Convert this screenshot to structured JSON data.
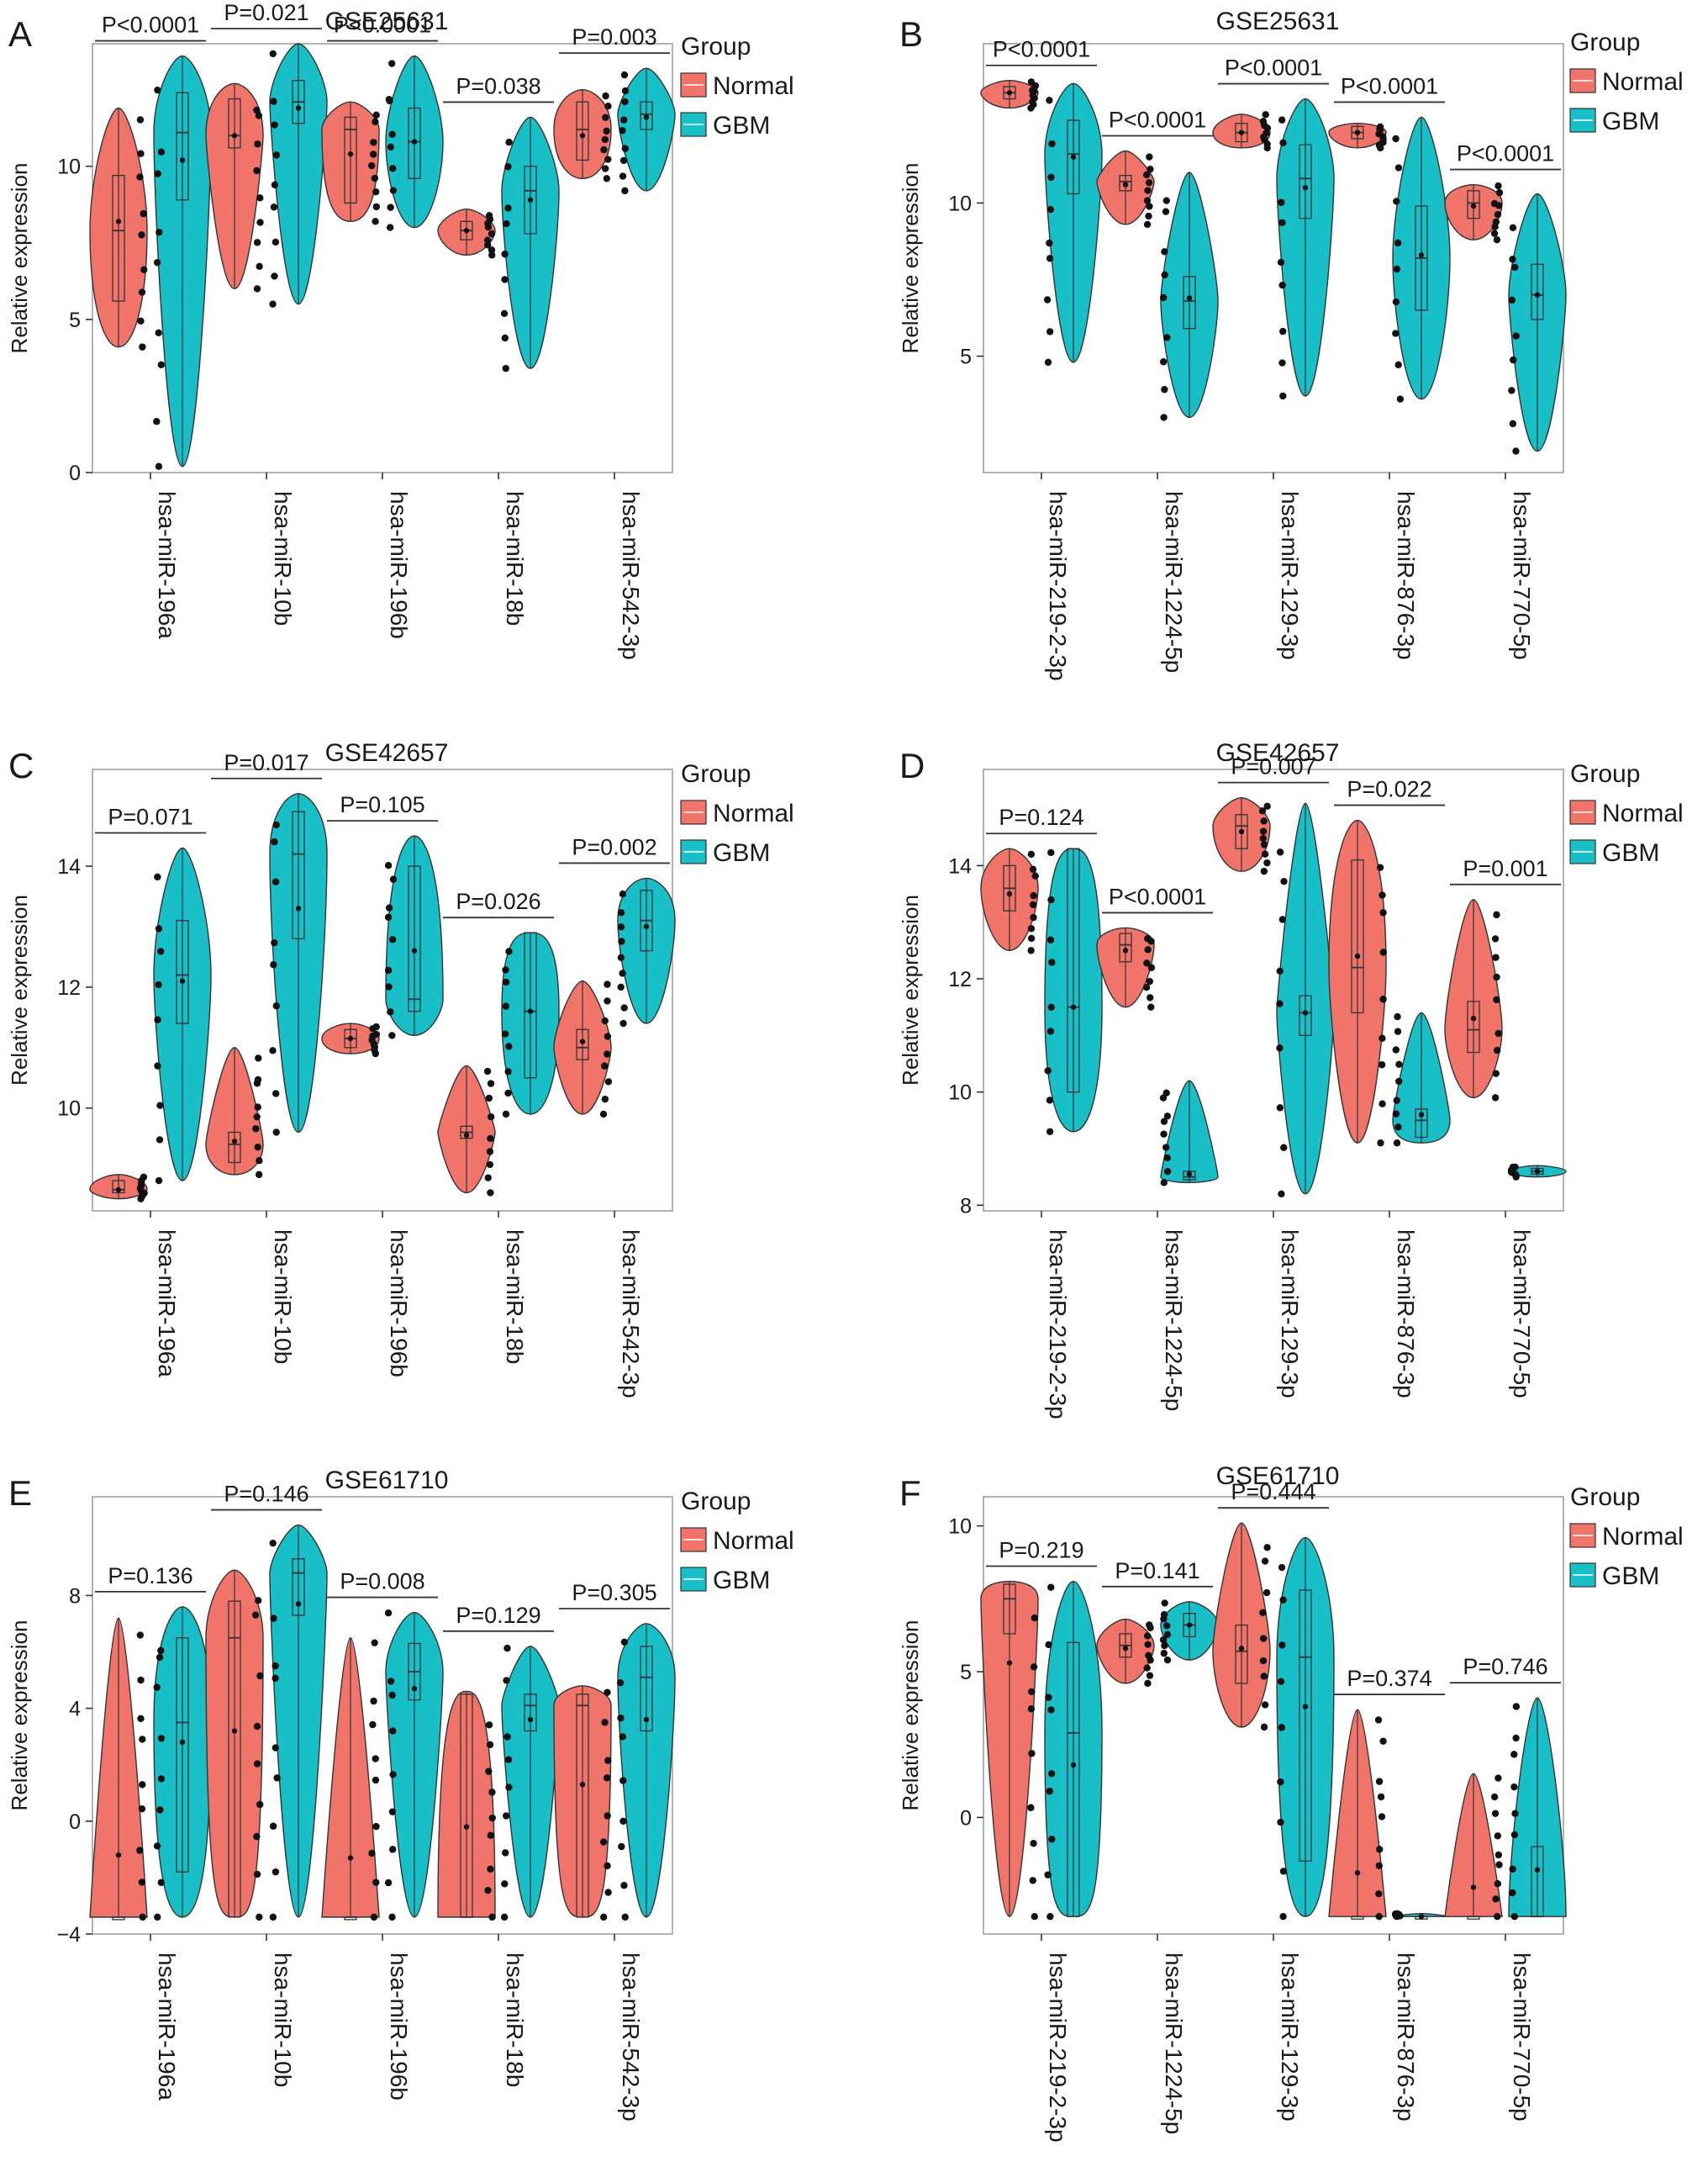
{
  "figure": {
    "legend_title": "Group",
    "group_names": [
      "Normal",
      "GBM"
    ],
    "colors": {
      "Normal": "#F0746A",
      "GBM": "#19BFC6",
      "outline": "#333333",
      "panel_border": "#a0a0a0"
    },
    "ylabel": "Relative expression"
  },
  "chart_data": [
    {
      "panel": "A",
      "type": "violin",
      "title": "GSE25631",
      "ylim": [
        0,
        14
      ],
      "yticks": [
        0,
        5,
        10
      ],
      "categories": [
        "hsa-miR-196a",
        "hsa-miR-10b",
        "hsa-miR-196b",
        "hsa-miR-18b",
        "hsa-miR-542-3p"
      ],
      "pvalues": [
        "P<0.0001",
        "P=0.021",
        "P<0.0001",
        "P=0.038",
        "P=0.003"
      ],
      "series": [
        {
          "name": "Normal",
          "violins": [
            {
              "min": 4.1,
              "max": 11.9,
              "q1": 5.6,
              "median": 7.9,
              "q3": 9.7,
              "mean": 8.2
            },
            {
              "min": 6.0,
              "max": 12.7,
              "q1": 10.6,
              "median": 11.0,
              "q3": 12.2,
              "mean": 11.0
            },
            {
              "min": 8.2,
              "max": 12.1,
              "q1": 8.8,
              "median": 11.2,
              "q3": 11.6,
              "mean": 10.4
            },
            {
              "min": 7.1,
              "max": 8.6,
              "q1": 7.6,
              "median": 7.9,
              "q3": 8.2,
              "mean": 7.9
            },
            {
              "min": 9.6,
              "max": 12.5,
              "q1": 10.2,
              "median": 11.2,
              "q3": 12.1,
              "mean": 11.0
            }
          ]
        },
        {
          "name": "GBM",
          "violins": [
            {
              "min": 0.2,
              "max": 13.6,
              "q1": 8.9,
              "median": 11.1,
              "q3": 12.4,
              "mean": 10.2
            },
            {
              "min": 5.5,
              "max": 14.0,
              "q1": 11.4,
              "median": 12.1,
              "q3": 12.8,
              "mean": 11.9
            },
            {
              "min": 8.0,
              "max": 13.6,
              "q1": 9.6,
              "median": 10.8,
              "q3": 11.9,
              "mean": 10.8
            },
            {
              "min": 3.4,
              "max": 11.6,
              "q1": 7.8,
              "median": 9.2,
              "q3": 10.0,
              "mean": 8.9
            },
            {
              "min": 9.2,
              "max": 13.2,
              "q1": 11.2,
              "median": 11.7,
              "q3": 12.1,
              "mean": 11.6
            }
          ]
        }
      ]
    },
    {
      "panel": "B",
      "type": "violin",
      "title": "GSE25631",
      "ylim": [
        1.2,
        15.2
      ],
      "yticks": [
        5,
        10
      ],
      "categories": [
        "hsa-miR-219-2-3p",
        "hsa-miR-1224-5p",
        "hsa-miR-129-3p",
        "hsa-miR-876-3p",
        "hsa-miR-770-5p"
      ],
      "pvalues": [
        "P<0.0001",
        "P<0.0001",
        "P<0.0001",
        "P<0.0001",
        "P<0.0001"
      ],
      "series": [
        {
          "name": "Normal",
          "violins": [
            {
              "min": 13.1,
              "max": 14.0,
              "q1": 13.4,
              "median": 13.6,
              "q3": 13.8,
              "mean": 13.6
            },
            {
              "min": 9.3,
              "max": 11.7,
              "q1": 10.4,
              "median": 10.7,
              "q3": 10.9,
              "mean": 10.6
            },
            {
              "min": 11.8,
              "max": 12.9,
              "q1": 12.0,
              "median": 12.3,
              "q3": 12.6,
              "mean": 12.3
            },
            {
              "min": 11.8,
              "max": 12.6,
              "q1": 12.1,
              "median": 12.3,
              "q3": 12.5,
              "mean": 12.3
            },
            {
              "min": 8.8,
              "max": 10.6,
              "q1": 9.5,
              "median": 10.0,
              "q3": 10.4,
              "mean": 9.9
            }
          ]
        },
        {
          "name": "GBM",
          "violins": [
            {
              "min": 4.8,
              "max": 13.9,
              "q1": 10.3,
              "median": 11.6,
              "q3": 12.7,
              "mean": 11.5
            },
            {
              "min": 3.0,
              "max": 11.0,
              "q1": 5.9,
              "median": 6.8,
              "q3": 7.6,
              "mean": 6.9
            },
            {
              "min": 3.7,
              "max": 13.4,
              "q1": 9.5,
              "median": 10.8,
              "q3": 11.9,
              "mean": 10.5
            },
            {
              "min": 3.6,
              "max": 12.8,
              "q1": 6.5,
              "median": 8.2,
              "q3": 9.9,
              "mean": 8.3
            },
            {
              "min": 1.9,
              "max": 10.3,
              "q1": 6.2,
              "median": 7.0,
              "q3": 8.0,
              "mean": 7.0
            }
          ]
        }
      ]
    },
    {
      "panel": "C",
      "type": "violin",
      "title": "GSE42657",
      "ylim": [
        8.3,
        15.6
      ],
      "yticks": [
        10,
        12,
        14
      ],
      "categories": [
        "hsa-miR-196a",
        "hsa-miR-10b",
        "hsa-miR-196b",
        "hsa-miR-18b",
        "hsa-miR-542-3p"
      ],
      "pvalues": [
        "P=0.071",
        "P=0.017",
        "P=0.105",
        "P=0.026",
        "P=0.002"
      ],
      "series": [
        {
          "name": "Normal",
          "violins": [
            {
              "min": 8.5,
              "max": 8.9,
              "q1": 8.6,
              "median": 8.65,
              "q3": 8.8,
              "mean": 8.65
            },
            {
              "min": 8.9,
              "max": 11.0,
              "q1": 9.1,
              "median": 9.4,
              "q3": 9.6,
              "mean": 9.45
            },
            {
              "min": 10.9,
              "max": 11.4,
              "q1": 11.0,
              "median": 11.15,
              "q3": 11.3,
              "mean": 11.15
            },
            {
              "min": 8.6,
              "max": 10.7,
              "q1": 9.5,
              "median": 9.6,
              "q3": 9.7,
              "mean": 9.55
            },
            {
              "min": 9.9,
              "max": 12.1,
              "q1": 10.8,
              "median": 11.0,
              "q3": 11.3,
              "mean": 11.1
            }
          ]
        },
        {
          "name": "GBM",
          "violins": [
            {
              "min": 8.8,
              "max": 14.3,
              "q1": 11.4,
              "median": 12.2,
              "q3": 13.1,
              "mean": 12.1
            },
            {
              "min": 9.6,
              "max": 15.2,
              "q1": 12.8,
              "median": 14.2,
              "q3": 14.9,
              "mean": 13.3
            },
            {
              "min": 11.2,
              "max": 14.5,
              "q1": 11.6,
              "median": 11.8,
              "q3": 14.0,
              "mean": 12.6
            },
            {
              "min": 9.9,
              "max": 12.9,
              "q1": 10.5,
              "median": 11.6,
              "q3": 12.9,
              "mean": 11.6
            },
            {
              "min": 11.4,
              "max": 13.8,
              "q1": 12.6,
              "median": 13.1,
              "q3": 13.6,
              "mean": 13.0
            }
          ]
        }
      ]
    },
    {
      "panel": "D",
      "type": "violin",
      "title": "GSE42657",
      "ylim": [
        7.9,
        15.7
      ],
      "yticks": [
        8,
        10,
        12,
        14
      ],
      "categories": [
        "hsa-miR-219-2-3p",
        "hsa-miR-1224-5p",
        "hsa-miR-129-3p",
        "hsa-miR-876-3p",
        "hsa-miR-770-5p"
      ],
      "pvalues": [
        "P=0.124",
        "P<0.0001",
        "P=0.007",
        "P=0.022",
        "P=0.001"
      ],
      "series": [
        {
          "name": "Normal",
          "violins": [
            {
              "min": 12.5,
              "max": 14.3,
              "q1": 13.2,
              "median": 13.6,
              "q3": 14.0,
              "mean": 13.5
            },
            {
              "min": 11.5,
              "max": 12.9,
              "q1": 12.3,
              "median": 12.6,
              "q3": 12.8,
              "mean": 12.5
            },
            {
              "min": 13.9,
              "max": 15.2,
              "q1": 14.3,
              "median": 14.7,
              "q3": 14.9,
              "mean": 14.6
            },
            {
              "min": 9.1,
              "max": 14.8,
              "q1": 11.4,
              "median": 12.2,
              "q3": 14.1,
              "mean": 12.4
            },
            {
              "min": 9.9,
              "max": 13.4,
              "q1": 10.7,
              "median": 11.1,
              "q3": 11.6,
              "mean": 11.3
            }
          ]
        },
        {
          "name": "GBM",
          "violins": [
            {
              "min": 9.3,
              "max": 14.3,
              "q1": 10.0,
              "median": 11.5,
              "q3": 14.3,
              "mean": 11.5
            },
            {
              "min": 8.4,
              "max": 10.2,
              "q1": 8.45,
              "median": 8.5,
              "q3": 8.6,
              "mean": 8.55
            },
            {
              "min": 8.2,
              "max": 15.1,
              "q1": 11.0,
              "median": 11.4,
              "q3": 11.7,
              "mean": 11.4
            },
            {
              "min": 9.1,
              "max": 11.4,
              "q1": 9.2,
              "median": 9.5,
              "q3": 9.7,
              "mean": 9.6
            },
            {
              "min": 8.5,
              "max": 8.7,
              "q1": 8.55,
              "median": 8.6,
              "q3": 8.65,
              "mean": 8.6
            }
          ]
        }
      ]
    },
    {
      "panel": "E",
      "type": "violin",
      "title": "GSE61710",
      "ylim": [
        -4,
        11.5
      ],
      "yticks": [
        -4,
        0,
        4,
        8
      ],
      "categories": [
        "hsa-miR-196a",
        "hsa-miR-10b",
        "hsa-miR-196b",
        "hsa-miR-18b",
        "hsa-miR-542-3p"
      ],
      "pvalues": [
        "P=0.136",
        "P=0.146",
        "P=0.008",
        "P=0.129",
        "P=0.305"
      ],
      "series": [
        {
          "name": "Normal",
          "violins": [
            {
              "min": -3.4,
              "max": 7.2,
              "q1": -3.4,
              "median": -3.4,
              "q3": -3.4,
              "mean": -1.2
            },
            {
              "min": -3.4,
              "max": 8.9,
              "q1": -3.4,
              "median": 6.5,
              "q3": 7.8,
              "mean": 3.2
            },
            {
              "min": -3.4,
              "max": 6.5,
              "q1": -3.4,
              "median": -3.4,
              "q3": -3.4,
              "mean": -1.3
            },
            {
              "min": -3.4,
              "max": 4.6,
              "q1": -3.4,
              "median": -3.4,
              "q3": 4.5,
              "mean": -0.2
            },
            {
              "min": -3.4,
              "max": 4.8,
              "q1": -3.4,
              "median": 4.1,
              "q3": 4.5,
              "mean": 1.3
            }
          ]
        },
        {
          "name": "GBM",
          "violins": [
            {
              "min": -3.4,
              "max": 7.6,
              "q1": -1.8,
              "median": 3.5,
              "q3": 6.5,
              "mean": 2.8
            },
            {
              "min": -3.4,
              "max": 10.5,
              "q1": 7.3,
              "median": 8.8,
              "q3": 9.3,
              "mean": 7.7
            },
            {
              "min": -3.4,
              "max": 7.4,
              "q1": 4.3,
              "median": 5.3,
              "q3": 6.3,
              "mean": 4.7
            },
            {
              "min": -3.4,
              "max": 6.2,
              "q1": 3.2,
              "median": 4.1,
              "q3": 4.5,
              "mean": 3.6
            },
            {
              "min": -3.4,
              "max": 7.0,
              "q1": 3.2,
              "median": 5.1,
              "q3": 6.2,
              "mean": 3.6
            }
          ]
        }
      ]
    },
    {
      "panel": "F",
      "type": "violin",
      "title": "GSE61710",
      "ylim": [
        -4,
        11
      ],
      "yticks": [
        0,
        5,
        10
      ],
      "categories": [
        "hsa-miR-219-2-3p",
        "hsa-miR-1224-5p",
        "hsa-miR-129-3p",
        "hsa-miR-876-3p",
        "hsa-miR-770-5p"
      ],
      "pvalues": [
        "P=0.219",
        "P=0.141",
        "P=0.444",
        "P=0.374",
        "P=0.746"
      ],
      "series": [
        {
          "name": "Normal",
          "violins": [
            {
              "min": -3.4,
              "max": 8.1,
              "q1": 6.3,
              "median": 7.5,
              "q3": 8.0,
              "mean": 5.3
            },
            {
              "min": 4.6,
              "max": 6.8,
              "q1": 5.5,
              "median": 5.9,
              "q3": 6.3,
              "mean": 5.8
            },
            {
              "min": 3.1,
              "max": 10.1,
              "q1": 4.6,
              "median": 5.7,
              "q3": 6.6,
              "mean": 5.8
            },
            {
              "min": -3.4,
              "max": 3.7,
              "q1": -3.4,
              "median": -3.4,
              "q3": -3.4,
              "mean": -1.9
            },
            {
              "min": -3.4,
              "max": 1.5,
              "q1": -3.4,
              "median": -3.4,
              "q3": -3.4,
              "mean": -2.4
            }
          ]
        },
        {
          "name": "GBM",
          "violins": [
            {
              "min": -3.4,
              "max": 8.1,
              "q1": -3.4,
              "median": 2.9,
              "q3": 6.0,
              "mean": 1.8
            },
            {
              "min": 5.4,
              "max": 7.4,
              "q1": 6.2,
              "median": 6.6,
              "q3": 7.0,
              "mean": 6.6
            },
            {
              "min": -3.4,
              "max": 9.6,
              "q1": -1.5,
              "median": 5.5,
              "q3": 7.8,
              "mean": 3.8
            },
            {
              "min": -3.4,
              "max": -3.3,
              "q1": -3.4,
              "median": -3.4,
              "q3": -3.4,
              "mean": -3.4
            },
            {
              "min": -3.4,
              "max": 4.1,
              "q1": -3.4,
              "median": -3.4,
              "q3": -1.0,
              "mean": -1.8
            }
          ]
        }
      ]
    }
  ]
}
